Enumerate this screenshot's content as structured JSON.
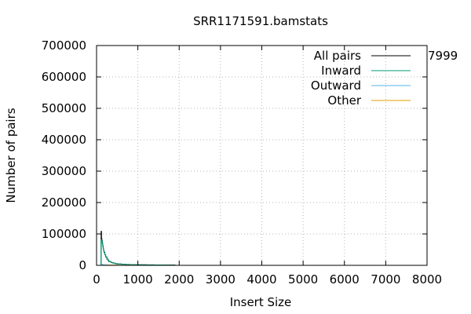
{
  "chart_data": {
    "type": "line",
    "title": "SRR1171591.bamstats",
    "xlabel": "Insert Size",
    "ylabel": "Number of pairs",
    "xlim": [
      0,
      8000
    ],
    "ylim": [
      0,
      700000
    ],
    "x_ticks": [
      "0",
      "1000",
      "2000",
      "3000",
      "4000",
      "5000",
      "6000",
      "7000",
      "8000"
    ],
    "y_ticks": [
      "0",
      "100000",
      "200000",
      "300000",
      "400000",
      "500000",
      "600000",
      "700000"
    ],
    "x_tick_values": [
      0,
      1000,
      2000,
      3000,
      4000,
      5000,
      6000,
      7000,
      8000
    ],
    "y_tick_values": [
      0,
      100000,
      200000,
      300000,
      400000,
      500000,
      600000,
      700000
    ],
    "grid": true,
    "legend_placement": "top-right",
    "annotation": "7999",
    "series": [
      {
        "name": "All pairs",
        "color": "#000000",
        "x": [
          100,
          110,
          120,
          130,
          140,
          150,
          160,
          170,
          180,
          200,
          220,
          250,
          280,
          300,
          350,
          400,
          450,
          500,
          600,
          700,
          800,
          1000,
          1200,
          1400,
          1600,
          1800,
          1900
        ],
        "y": [
          0,
          108000,
          85000,
          78000,
          70000,
          62000,
          55000,
          48000,
          42000,
          34000,
          27000,
          20000,
          15000,
          12000,
          9000,
          7000,
          5500,
          4500,
          3500,
          2800,
          2300,
          1800,
          1500,
          1200,
          1000,
          800,
          0
        ]
      },
      {
        "name": "Inward",
        "color": "#009e73",
        "x": [
          100,
          110,
          120,
          130,
          140,
          150,
          160,
          170,
          180,
          200,
          220,
          250,
          280,
          300,
          350,
          400,
          450,
          500,
          600,
          700,
          800,
          1000,
          1200,
          1400,
          1600,
          1800,
          1900
        ],
        "y": [
          0,
          82000,
          80000,
          76000,
          68000,
          60000,
          53000,
          46000,
          40000,
          33000,
          26000,
          19000,
          14500,
          11500,
          8500,
          6800,
          5300,
          4300,
          3400,
          2700,
          2200,
          1700,
          1400,
          1100,
          950,
          750,
          0
        ]
      },
      {
        "name": "Outward",
        "color": "#56b4e9",
        "x": [
          100,
          120,
          150,
          200,
          300,
          500,
          1000,
          1900
        ],
        "y": [
          0,
          3000,
          2000,
          1200,
          600,
          300,
          100,
          0
        ]
      },
      {
        "name": "Other",
        "color": "#e69f00",
        "x": [
          100,
          200,
          500,
          1000,
          1900
        ],
        "y": [
          0,
          500,
          300,
          100,
          0
        ]
      }
    ]
  }
}
